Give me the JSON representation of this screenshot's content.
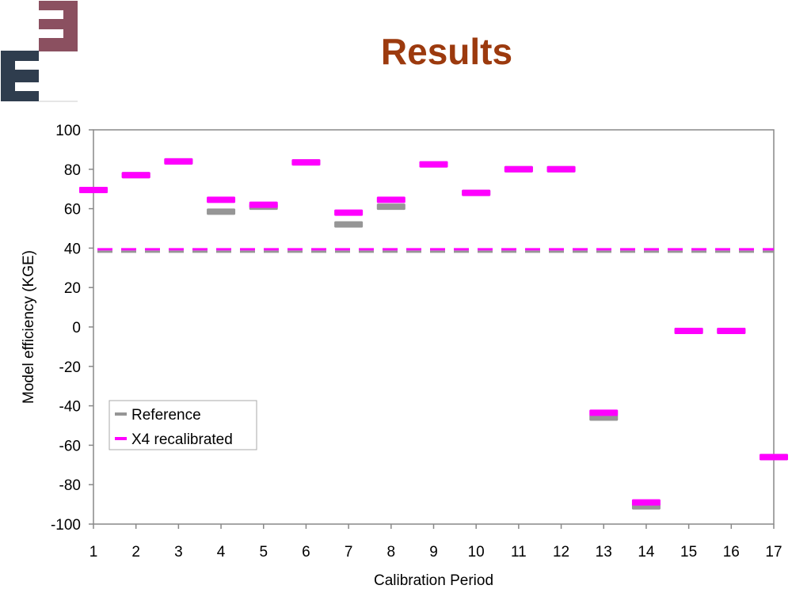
{
  "slide": {
    "title": "Results"
  },
  "logo": {
    "colors": {
      "top": "#8b5060",
      "bottom": "#2f3d4e"
    }
  },
  "chart_data": {
    "type": "scatter",
    "marker": "horizontal-dash",
    "xlabel": "Calibration Period",
    "ylabel": "Model efficiency (KGE)",
    "ylim": [
      -100,
      100
    ],
    "yticks": [
      100,
      80,
      60,
      40,
      20,
      0,
      -20,
      -40,
      -60,
      -80,
      -100
    ],
    "categories": [
      "1",
      "2",
      "3",
      "4",
      "5",
      "6",
      "7",
      "8",
      "9",
      "10",
      "11",
      "12",
      "13",
      "14",
      "15",
      "16",
      "17"
    ],
    "grid": false,
    "legend": "lower-left",
    "series": [
      {
        "name": "Reference",
        "color": "#969696",
        "values": [
          69.5,
          77,
          84,
          58.5,
          61,
          83.5,
          52,
          61,
          82.5,
          68,
          80,
          80,
          -46,
          -91,
          -2,
          -2,
          -66
        ],
        "mean": 38.2
      },
      {
        "name": "X4 recalibrated",
        "color": "#ff00ff",
        "values": [
          69.5,
          77,
          84,
          64.5,
          62,
          83.5,
          58,
          64.5,
          82.5,
          68,
          80,
          80,
          -43.5,
          -89,
          -2,
          -2,
          -66
        ],
        "mean": 39.4
      }
    ]
  }
}
